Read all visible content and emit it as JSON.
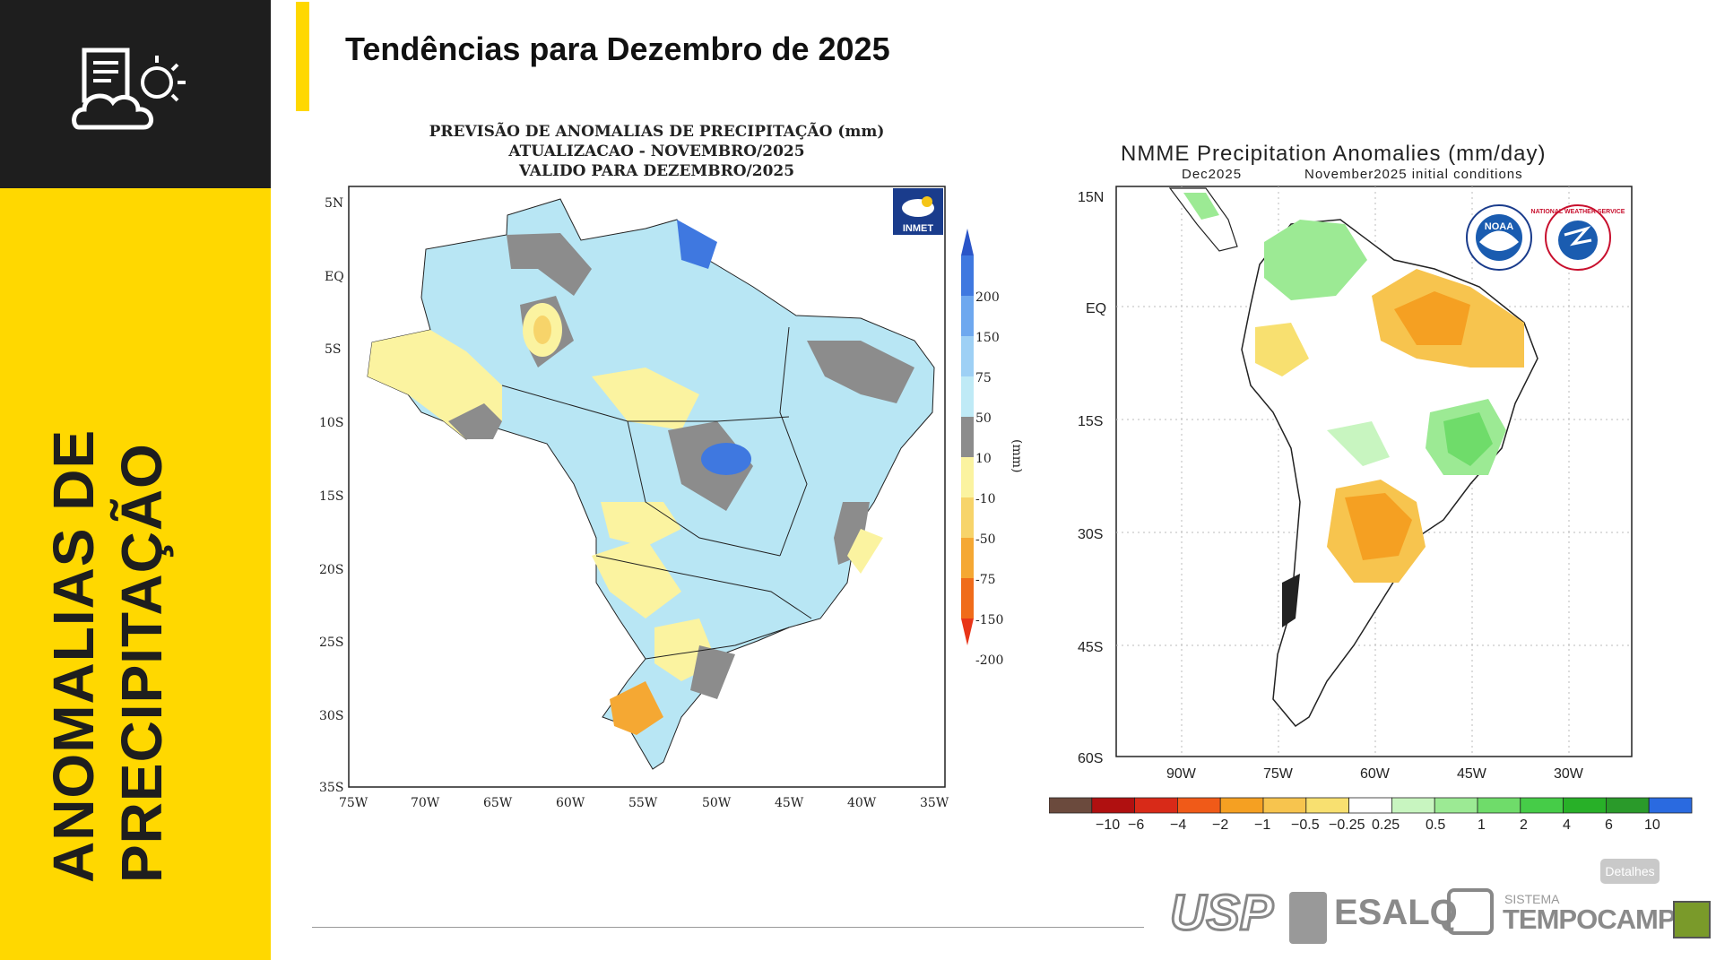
{
  "sidebar": {
    "title_line1": "ANOMALIAS DE",
    "title_line2": "PRECIPITAÇÃO",
    "icon": "weather-report-icon"
  },
  "header": {
    "title": "Tendências para Dezembro de 2025"
  },
  "map_inmet": {
    "title_line1": "PREVISÃO DE ANOMALIAS DE PRECIPITAÇÃO (mm)",
    "title_line2": "ATUALIZACAO - NOVEMBRO/2025",
    "title_line3": "VALIDO PARA DEZEMBRO/2025",
    "logo": "INMET",
    "lat_labels": [
      "5N",
      "EQ",
      "5S",
      "10S",
      "15S",
      "20S",
      "25S",
      "30S",
      "35S"
    ],
    "lon_labels": [
      "75W",
      "70W",
      "65W",
      "60W",
      "55W",
      "50W",
      "45W",
      "40W",
      "35W"
    ],
    "legend_unit": "(mm)",
    "legend_labels": [
      "200",
      "150",
      "75",
      "50",
      "10",
      "-10",
      "-50",
      "-75",
      "-150",
      "-200"
    ],
    "legend_colors": [
      "#2a55c8",
      "#3f78e0",
      "#6ea8ef",
      "#9ed0f5",
      "#bfeaf6",
      "#8c8c8c",
      "#fbf3a0",
      "#f7d46a",
      "#f5a833",
      "#f06c1a",
      "#e83518"
    ]
  },
  "map_nmme": {
    "title": "NMME Precipitation Anomalies (mm/day)",
    "subtitle_left": "Dec2025",
    "subtitle_right": "November2025 initial conditions",
    "lat_labels": [
      "15N",
      "EQ",
      "15S",
      "30S",
      "45S",
      "60S"
    ],
    "lon_labels": [
      "90W",
      "75W",
      "60W",
      "45W",
      "30W"
    ],
    "colorbar_labels": [
      "−10",
      "−6",
      "−4",
      "−2",
      "−1",
      "−0.5",
      "−0.25",
      "0.25",
      "0.5",
      "1",
      "2",
      "4",
      "6",
      "10"
    ],
    "colorbar_colors": [
      "#6b4a3d",
      "#b01010",
      "#d82a18",
      "#f05a18",
      "#f5a022",
      "#f7c44e",
      "#f8e070",
      "#ffffff",
      "#c8f5c0",
      "#9cea94",
      "#6fdc6a",
      "#46cc48",
      "#28b028",
      "#2a9a2a",
      "#2a6ae0"
    ],
    "logos": [
      "NOAA",
      "NATIONAL WEATHER SERVICE"
    ]
  },
  "footer": {
    "detalhes": "Detalhes",
    "logo_usp": "USP",
    "logo_esalq": "ESALQ",
    "logo_sistema": "SISTEMA",
    "logo_tempocampo": "TEMPOCAMPO"
  }
}
